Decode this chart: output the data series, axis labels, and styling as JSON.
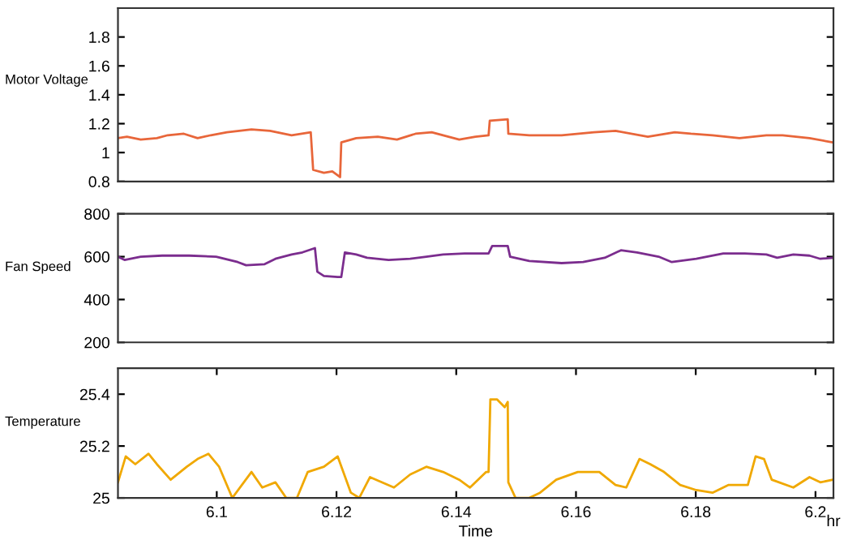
{
  "chart_data": [
    {
      "type": "line",
      "ylabel": "Motor Voltage",
      "xlim": [
        6.0835,
        6.203
      ],
      "ylim": [
        0.8,
        2.0
      ],
      "yticks": [
        0.8,
        1,
        1.2,
        1.4,
        1.6,
        1.8
      ],
      "tick_labels": "y",
      "grid": false,
      "legend": false,
      "series": [
        {
          "color": "#e8663a",
          "x": [
            6.0835,
            6.085,
            6.0873,
            6.09,
            6.0918,
            6.0945,
            6.0968,
            6.099,
            6.1017,
            6.1058,
            6.1089,
            6.1125,
            6.1157,
            6.1161,
            6.1179,
            6.1193,
            6.1206,
            6.1208,
            6.1233,
            6.1269,
            6.1301,
            6.1332,
            6.1359,
            6.1387,
            6.1405,
            6.1432,
            6.1454,
            6.1456,
            6.1486,
            6.1487,
            6.1522,
            6.1576,
            6.163,
            6.1666,
            6.172,
            6.1765,
            6.1792,
            6.1828,
            6.1873,
            6.1918,
            6.1945,
            6.199,
            6.2029
          ],
          "values": [
            1.1,
            1.11,
            1.09,
            1.1,
            1.12,
            1.13,
            1.1,
            1.12,
            1.14,
            1.16,
            1.15,
            1.12,
            1.14,
            0.88,
            0.86,
            0.87,
            0.83,
            1.07,
            1.1,
            1.11,
            1.09,
            1.13,
            1.14,
            1.11,
            1.09,
            1.11,
            1.12,
            1.22,
            1.23,
            1.13,
            1.12,
            1.12,
            1.14,
            1.15,
            1.11,
            1.14,
            1.13,
            1.12,
            1.1,
            1.12,
            1.12,
            1.1,
            1.07
          ]
        }
      ]
    },
    {
      "type": "line",
      "ylabel": "Fan Speed",
      "xlim": [
        6.0835,
        6.203
      ],
      "ylim": [
        200,
        800
      ],
      "yticks": [
        200,
        400,
        600,
        800
      ],
      "tick_labels": "y",
      "grid": false,
      "legend": false,
      "series": [
        {
          "color": "#7b2d8e",
          "x": [
            6.0835,
            6.0846,
            6.0873,
            6.0909,
            6.0954,
            6.0999,
            6.1035,
            6.1049,
            6.108,
            6.1098,
            6.1125,
            6.1143,
            6.1164,
            6.1168,
            6.1179,
            6.1202,
            6.1208,
            6.1214,
            6.1233,
            6.1251,
            6.1287,
            6.1323,
            6.135,
            6.1378,
            6.1414,
            6.1454,
            6.146,
            6.1486,
            6.149,
            6.1522,
            6.1576,
            6.1612,
            6.1648,
            6.1675,
            6.1702,
            6.1738,
            6.176,
            6.1801,
            6.1846,
            6.1882,
            6.1918,
            6.1936,
            6.1963,
            6.199,
            6.2008,
            6.2029
          ],
          "values": [
            600,
            585,
            600,
            605,
            605,
            600,
            575,
            560,
            565,
            590,
            610,
            620,
            640,
            530,
            510,
            505,
            505,
            620,
            610,
            595,
            585,
            590,
            600,
            610,
            615,
            615,
            650,
            650,
            600,
            580,
            570,
            575,
            595,
            630,
            620,
            600,
            575,
            590,
            615,
            615,
            610,
            595,
            610,
            605,
            590,
            595
          ]
        }
      ]
    },
    {
      "type": "line",
      "ylabel": "Temperature",
      "xlabel": "Time",
      "annotations": [
        "hr"
      ],
      "xlim": [
        6.0835,
        6.203
      ],
      "xticks": [
        6.1,
        6.12,
        6.14,
        6.16,
        6.18,
        6.2
      ],
      "ylim": [
        25,
        25.5
      ],
      "yticks": [
        25,
        25.2,
        25.4
      ],
      "grid": false,
      "legend": false,
      "series": [
        {
          "color": "#f0a800",
          "x": [
            6.0835,
            6.0848,
            6.0864,
            6.0886,
            6.09,
            6.0923,
            6.095,
            6.0968,
            6.0986,
            6.1004,
            6.1026,
            6.1058,
            6.1076,
            6.1098,
            6.1116,
            6.1134,
            6.1152,
            6.1179,
            6.1202,
            6.1224,
            6.1238,
            6.1256,
            6.1296,
            6.1323,
            6.135,
            6.1378,
            6.1405,
            6.1423,
            6.145,
            6.1454,
            6.1457,
            6.1468,
            6.1481,
            6.1486,
            6.1487,
            6.1499,
            6.1522,
            6.154,
            6.1567,
            6.1603,
            6.1639,
            6.1666,
            6.1684,
            6.1706,
            6.1724,
            6.1747,
            6.1774,
            6.1801,
            6.1828,
            6.1855,
            6.1887,
            6.19,
            6.1914,
            6.1927,
            6.1963,
            6.199,
            6.2008,
            6.2029
          ],
          "values": [
            25.06,
            25.16,
            25.13,
            25.17,
            25.13,
            25.07,
            25.12,
            25.15,
            25.17,
            25.12,
            25.0,
            25.1,
            25.04,
            25.06,
            25.0,
            25.0,
            25.1,
            25.12,
            25.16,
            25.02,
            25.0,
            25.08,
            25.04,
            25.09,
            25.12,
            25.1,
            25.07,
            25.04,
            25.1,
            25.1,
            25.38,
            25.38,
            25.35,
            25.37,
            25.06,
            25.0,
            25.0,
            25.02,
            25.07,
            25.1,
            25.1,
            25.05,
            25.04,
            25.15,
            25.13,
            25.1,
            25.05,
            25.03,
            25.02,
            25.05,
            25.05,
            25.16,
            25.15,
            25.07,
            25.04,
            25.08,
            25.06,
            25.07
          ]
        }
      ]
    }
  ]
}
